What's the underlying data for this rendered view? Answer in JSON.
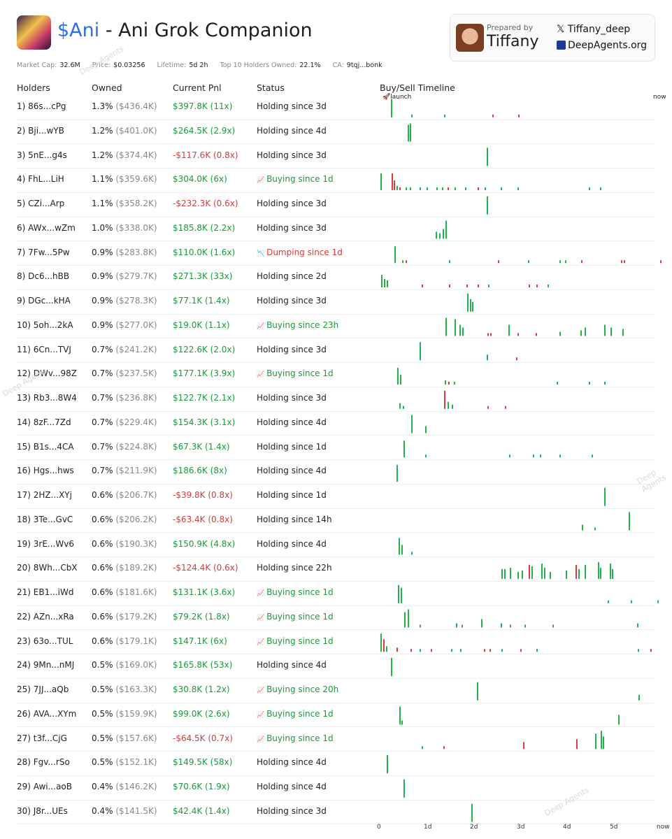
{
  "header": {
    "ticker": "$Ani",
    "title": " - Ani Grok Companion",
    "stats": [
      {
        "label": "Market Cap:",
        "value": "32.6M"
      },
      {
        "label": "Price:",
        "value": "$0.03256"
      },
      {
        "label": "Lifetime:",
        "value": "5d 2h"
      },
      {
        "label": "Top 10 Holders Owned:",
        "value": "22.1%"
      },
      {
        "label": "CA:",
        "value": "9tqj...bonk"
      }
    ]
  },
  "prepared": {
    "label": "Prepared by",
    "name": "Tiffany",
    "x_handle": "Tiffany_deep",
    "x_icon": "x-logo-icon",
    "site": "DeepAgents.org"
  },
  "watermark": "Deep Agents",
  "columns": {
    "holders": "Holders",
    "owned": "Owned",
    "pnl": "Current Pnl",
    "status": "Status",
    "timeline": "Buy/Sell Timeline"
  },
  "timeline": {
    "launch_label": "launch",
    "now_label": "now",
    "axis_ticks": [
      "0",
      "1d",
      "2d",
      "3d",
      "4d",
      "5d",
      "now"
    ],
    "colors": {
      "buy": "#22b24c",
      "sell": "#e0393e"
    }
  },
  "rows": [
    {
      "holder": "1) 86s...cPg",
      "owned": "1.3%",
      "owned_usd": "($436.4K)",
      "pnl": "$397.8K (11x)",
      "pnl_sign": "pos",
      "status": "Holding since 3d",
      "status_type": "hold"
    },
    {
      "holder": "2) Bji...wYB",
      "owned": "1.2%",
      "owned_usd": "($401.0K)",
      "pnl": "$264.5K (2.9x)",
      "pnl_sign": "pos",
      "status": "Holding since 4d",
      "status_type": "hold"
    },
    {
      "holder": "3) 5nE...g4s",
      "owned": "1.2%",
      "owned_usd": "($374.4K)",
      "pnl": "-$117.6K (0.8x)",
      "pnl_sign": "neg",
      "status": "Holding since 3d",
      "status_type": "hold"
    },
    {
      "holder": "4) FhL...LiH",
      "owned": "1.1%",
      "owned_usd": "($359.6K)",
      "pnl": "$304.0K (6x)",
      "pnl_sign": "pos",
      "status": "Buying since 1d",
      "status_type": "buy"
    },
    {
      "holder": "5) CZi...Arp",
      "owned": "1.1%",
      "owned_usd": "($358.2K)",
      "pnl": "-$232.3K (0.6x)",
      "pnl_sign": "neg",
      "status": "Holding since 3d",
      "status_type": "hold"
    },
    {
      "holder": "6) AWx...wZm",
      "owned": "1.0%",
      "owned_usd": "($338.0K)",
      "pnl": "$185.8K (2.2x)",
      "pnl_sign": "pos",
      "status": "Holding since 3d",
      "status_type": "hold"
    },
    {
      "holder": "7) 7Fw...5Pw",
      "owned": "0.9%",
      "owned_usd": "($283.8K)",
      "pnl": "$110.0K (1.6x)",
      "pnl_sign": "pos",
      "status": "Dumping since 1d",
      "status_type": "dump"
    },
    {
      "holder": "8) Dc6...hBB",
      "owned": "0.9%",
      "owned_usd": "($279.7K)",
      "pnl": "$271.3K (33x)",
      "pnl_sign": "pos",
      "status": "Holding since 2d",
      "status_type": "hold"
    },
    {
      "holder": "9) DGc...kHA",
      "owned": "0.9%",
      "owned_usd": "($278.3K)",
      "pnl": "$77.1K (1.4x)",
      "pnl_sign": "pos",
      "status": "Holding since 3d",
      "status_type": "hold"
    },
    {
      "holder": "10) 5oh...2kA",
      "owned": "0.9%",
      "owned_usd": "($277.0K)",
      "pnl": "$19.0K (1.1x)",
      "pnl_sign": "pos",
      "status": "Buying since 23h",
      "status_type": "buy"
    },
    {
      "holder": "11) 6Cn...TVJ",
      "owned": "0.7%",
      "owned_usd": "($241.2K)",
      "pnl": "$122.6K (2.0x)",
      "pnl_sign": "pos",
      "status": "Holding since 3d",
      "status_type": "hold"
    },
    {
      "holder": "12) DWv...98Z",
      "owned": "0.7%",
      "owned_usd": "($237.5K)",
      "pnl": "$177.1K (3.9x)",
      "pnl_sign": "pos",
      "status": "Buying since 1d",
      "status_type": "buy"
    },
    {
      "holder": "13) Rb3...8W4",
      "owned": "0.7%",
      "owned_usd": "($236.8K)",
      "pnl": "$122.7K (2.1x)",
      "pnl_sign": "pos",
      "status": "Holding since 3d",
      "status_type": "hold"
    },
    {
      "holder": "14) 8zF...7Zd",
      "owned": "0.7%",
      "owned_usd": "($229.4K)",
      "pnl": "$154.3K (3.1x)",
      "pnl_sign": "pos",
      "status": "Holding since 4d",
      "status_type": "hold"
    },
    {
      "holder": "15) B1s...4CA",
      "owned": "0.7%",
      "owned_usd": "($224.8K)",
      "pnl": "$67.3K (1.4x)",
      "pnl_sign": "pos",
      "status": "Holding since 1d",
      "status_type": "hold"
    },
    {
      "holder": "16) Hgs...hws",
      "owned": "0.7%",
      "owned_usd": "($211.9K)",
      "pnl": "$186.6K (8x)",
      "pnl_sign": "pos",
      "status": "Holding since 4d",
      "status_type": "hold"
    },
    {
      "holder": "17) 2HZ...XYj",
      "owned": "0.6%",
      "owned_usd": "($206.7K)",
      "pnl": "-$39.8K (0.8x)",
      "pnl_sign": "neg",
      "status": "Holding since 1d",
      "status_type": "hold"
    },
    {
      "holder": "18) 3Te...GvC",
      "owned": "0.6%",
      "owned_usd": "($206.2K)",
      "pnl": "-$63.4K (0.8x)",
      "pnl_sign": "neg",
      "status": "Holding since 14h",
      "status_type": "hold"
    },
    {
      "holder": "19) 3rE...Wv6",
      "owned": "0.6%",
      "owned_usd": "($190.3K)",
      "pnl": "$150.9K (4.8x)",
      "pnl_sign": "pos",
      "status": "Holding since 4d",
      "status_type": "hold"
    },
    {
      "holder": "20) 8Wh...CbX",
      "owned": "0.6%",
      "owned_usd": "($189.2K)",
      "pnl": "-$124.4K (0.6x)",
      "pnl_sign": "neg",
      "status": "Holding since 22h",
      "status_type": "hold"
    },
    {
      "holder": "21) EB1...iWd",
      "owned": "0.6%",
      "owned_usd": "($181.6K)",
      "pnl": "$131.1K (3.6x)",
      "pnl_sign": "pos",
      "status": "Buying since 1d",
      "status_type": "buy"
    },
    {
      "holder": "22) AZn...xRa",
      "owned": "0.6%",
      "owned_usd": "($179.2K)",
      "pnl": "$79.2K (1.8x)",
      "pnl_sign": "pos",
      "status": "Buying since 1d",
      "status_type": "buy"
    },
    {
      "holder": "23) 63o...TUL",
      "owned": "0.6%",
      "owned_usd": "($179.1K)",
      "pnl": "$147.1K (6x)",
      "pnl_sign": "pos",
      "status": "Buying since 1d",
      "status_type": "buy"
    },
    {
      "holder": "24) 9Mn...nMJ",
      "owned": "0.5%",
      "owned_usd": "($169.0K)",
      "pnl": "$165.8K (53x)",
      "pnl_sign": "pos",
      "status": "Holding since 4d",
      "status_type": "hold"
    },
    {
      "holder": "25) 7JJ...aQb",
      "owned": "0.5%",
      "owned_usd": "($163.3K)",
      "pnl": "$30.8K (1.2x)",
      "pnl_sign": "pos",
      "status": "Buying since 20h",
      "status_type": "buy"
    },
    {
      "holder": "26) AVA...XYm",
      "owned": "0.5%",
      "owned_usd": "($159.9K)",
      "pnl": "$99.0K (2.6x)",
      "pnl_sign": "pos",
      "status": "Buying since 1d",
      "status_type": "buy"
    },
    {
      "holder": "27) t3f...CjG",
      "owned": "0.5%",
      "owned_usd": "($157.6K)",
      "pnl": "-$64.5K (0.7x)",
      "pnl_sign": "neg",
      "status": "Buying since 1d",
      "status_type": "buy"
    },
    {
      "holder": "28) Fgv...rSo",
      "owned": "0.5%",
      "owned_usd": "($152.1K)",
      "pnl": "$149.5K (58x)",
      "pnl_sign": "pos",
      "status": "Holding since 4d",
      "status_type": "hold"
    },
    {
      "holder": "29) Awi...aoB",
      "owned": "0.4%",
      "owned_usd": "($146.2K)",
      "pnl": "$70.6K (1.9x)",
      "pnl_sign": "pos",
      "status": "Holding since 4d",
      "status_type": "hold"
    },
    {
      "holder": "30) J8r...UEs",
      "owned": "0.4%",
      "owned_usd": "($141.5K)",
      "pnl": "$42.4K (1.4x)",
      "pnl_sign": "pos",
      "status": "Holding since 3d",
      "status_type": "hold"
    }
  ]
}
